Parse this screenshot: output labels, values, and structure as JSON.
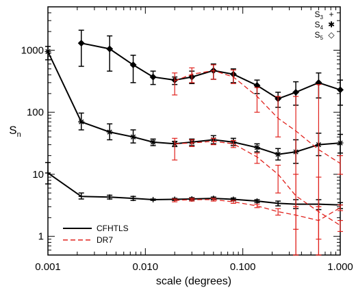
{
  "chart_data": {
    "type": "line",
    "xlabel": "scale (degrees)",
    "ylabel": "S",
    "ylabel_sub": "n",
    "xscale": "log",
    "yscale": "log",
    "xlim": [
      0.001,
      1.0
    ],
    "ylim": [
      0.5,
      5000
    ],
    "xticks": [
      {
        "value": 0.001,
        "label": "0.001"
      },
      {
        "value": 0.01,
        "label": "0.010"
      },
      {
        "value": 0.1,
        "label": "0.100"
      },
      {
        "value": 1.0,
        "label": "1.000"
      }
    ],
    "yticks": [
      {
        "value": 1,
        "label": "1"
      },
      {
        "value": 10,
        "label": "10"
      },
      {
        "value": 100,
        "label": "100"
      },
      {
        "value": 1000,
        "label": "1000"
      }
    ],
    "marker_key": [
      {
        "label": "S",
        "sub": "3",
        "symbol": "+"
      },
      {
        "label": "S",
        "sub": "4",
        "symbol": "✱"
      },
      {
        "label": "S",
        "sub": "5",
        "symbol": "◇"
      }
    ],
    "legend": {
      "placement": "bottom-left",
      "entries": [
        {
          "name": "CFHTLS",
          "color": "#000000",
          "style": "solid"
        },
        {
          "name": "DR7",
          "color": "#e0201b",
          "style": "dashed"
        }
      ]
    },
    "colors": {
      "cfhtls": "#000000",
      "dr7": "#e0201b"
    },
    "series": [
      {
        "name": "CFHTLS",
        "group": "S3",
        "marker": "plus",
        "style": "solid",
        "x": [
          0.001,
          0.0022,
          0.0043,
          0.0075,
          0.012,
          0.02,
          0.03,
          0.05,
          0.08,
          0.14,
          0.23,
          0.35,
          0.6,
          1.0
        ],
        "y": [
          10.5,
          4.4,
          4.3,
          4.1,
          3.9,
          3.95,
          4.0,
          4.1,
          3.95,
          3.7,
          3.4,
          3.3,
          3.3,
          3.2
        ],
        "ylo": [
          7.0,
          4.0,
          4.0,
          3.8,
          3.8,
          3.8,
          3.85,
          3.9,
          3.75,
          3.5,
          3.1,
          2.8,
          2.7,
          2.8
        ],
        "yhi": [
          15.5,
          5.0,
          4.6,
          4.4,
          4.0,
          4.1,
          4.2,
          4.3,
          4.15,
          3.9,
          3.7,
          3.9,
          3.9,
          3.5
        ]
      },
      {
        "name": "CFHTLS",
        "group": "S4",
        "marker": "asterisk",
        "style": "solid",
        "x": [
          0.001,
          0.0022,
          0.0043,
          0.0075,
          0.012,
          0.02,
          0.03,
          0.05,
          0.08,
          0.14,
          0.23,
          0.35,
          0.6,
          1.0
        ],
        "y": [
          950,
          70,
          48,
          40,
          33,
          31,
          33,
          36,
          33,
          27,
          21,
          23,
          30,
          32
        ],
        "ylo": [
          700,
          52,
          36,
          32,
          29,
          28,
          29,
          31,
          29,
          23,
          17,
          15,
          20,
          22
        ],
        "yhi": [
          1150,
          97,
          65,
          52,
          37,
          34,
          37,
          42,
          38,
          31,
          26,
          36,
          46,
          44
        ]
      },
      {
        "name": "CFHTLS",
        "group": "S5",
        "marker": "diamond",
        "style": "solid",
        "x": [
          0.0022,
          0.0043,
          0.0075,
          0.012,
          0.02,
          0.03,
          0.05,
          0.08,
          0.14,
          0.23,
          0.35,
          0.6,
          1.0
        ],
        "y": [
          1300,
          1050,
          580,
          370,
          330,
          370,
          470,
          410,
          270,
          165,
          210,
          300,
          230
        ],
        "ylo": [
          550,
          460,
          300,
          280,
          280,
          290,
          340,
          300,
          200,
          120,
          130,
          170,
          130
        ],
        "yhi": [
          2100,
          1700,
          830,
          460,
          370,
          460,
          600,
          500,
          330,
          210,
          310,
          430,
          330
        ]
      },
      {
        "name": "DR7",
        "group": "S3",
        "marker": "none",
        "style": "dashed",
        "x": [
          0.02,
          0.03,
          0.05,
          0.08,
          0.14,
          0.23,
          0.35,
          0.6,
          1.0
        ],
        "y": [
          3.8,
          3.9,
          3.9,
          3.6,
          3.1,
          2.5,
          2.2,
          1.8,
          2.9
        ],
        "ylo": [
          3.6,
          3.7,
          3.7,
          3.4,
          2.9,
          2.2,
          1.3,
          0.9,
          2.6
        ],
        "yhi": [
          4.0,
          4.1,
          4.1,
          3.8,
          3.3,
          2.8,
          3.0,
          3.0,
          3.2
        ]
      },
      {
        "name": "DR7",
        "group": "S4",
        "marker": "none",
        "style": "dashed",
        "x": [
          0.02,
          0.03,
          0.05,
          0.08,
          0.14,
          0.23,
          0.35,
          0.6,
          1.0
        ],
        "y": [
          31,
          32,
          34,
          31,
          19,
          10,
          4.5,
          2.5,
          1.5
        ],
        "ylo": [
          17,
          28,
          30,
          27,
          15,
          5,
          0.5,
          0.5,
          1.2
        ],
        "yhi": [
          38,
          36,
          38,
          35,
          22,
          14,
          10,
          9,
          1.8
        ]
      },
      {
        "name": "DR7",
        "group": "S5",
        "marker": "none",
        "style": "dashed",
        "x": [
          0.02,
          0.03,
          0.05,
          0.08,
          0.14,
          0.23,
          0.35,
          0.6,
          1.0
        ],
        "y": [
          320,
          410,
          470,
          370,
          180,
          80,
          50,
          25,
          15
        ],
        "ylo": [
          190,
          300,
          340,
          290,
          100,
          40,
          0.5,
          0.5,
          10
        ],
        "yhi": [
          430,
          520,
          580,
          480,
          250,
          180,
          180,
          280,
          20
        ]
      }
    ]
  }
}
